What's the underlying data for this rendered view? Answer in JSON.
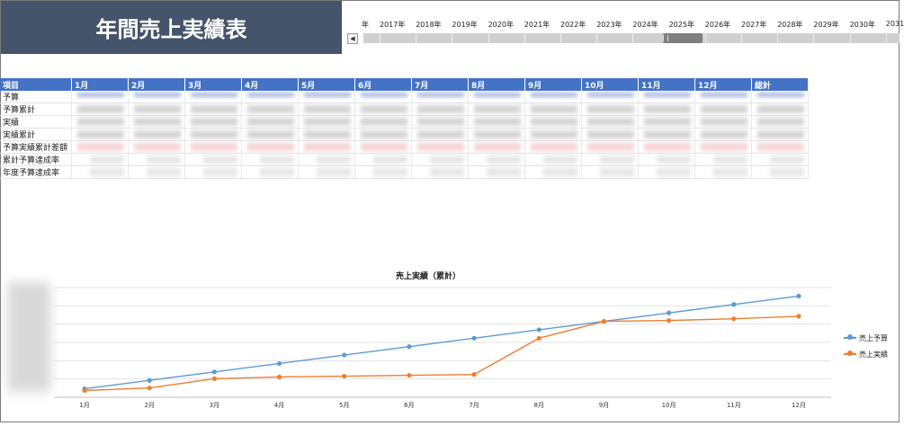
{
  "header": {
    "title": "年間売上実績表"
  },
  "timeline": {
    "unit_label": "年",
    "years": [
      "2017年",
      "2018年",
      "2019年",
      "2020年",
      "2021年",
      "2022年",
      "2023年",
      "2024年",
      "2025年",
      "2026年",
      "2027年",
      "2028年",
      "2029年",
      "2030年",
      "2031"
    ],
    "selected_year": "2025年",
    "scroll_left_icon": "chevron-left-icon"
  },
  "table": {
    "headers": [
      "項目",
      "1月",
      "2月",
      "3月",
      "4月",
      "5月",
      "6月",
      "7月",
      "8月",
      "9月",
      "10月",
      "11月",
      "12月",
      "総計"
    ],
    "rows": [
      "予算",
      "予算累計",
      "実績",
      "実績累計",
      "予算実績累計差額",
      "累計予算達成率",
      "年度予算達成率"
    ]
  },
  "chart_data": {
    "type": "line",
    "title": "売上実績（累計）",
    "categories": [
      "1月",
      "2月",
      "3月",
      "4月",
      "5月",
      "6月",
      "7月",
      "8月",
      "9月",
      "10月",
      "11月",
      "12月"
    ],
    "series": [
      {
        "name": "売上予算",
        "color": "#5b9bd5",
        "values": [
          1.0,
          2.0,
          3.0,
          4.0,
          5.0,
          6.0,
          7.0,
          8.0,
          9.0,
          10.0,
          11.0,
          12.0
        ]
      },
      {
        "name": "売上実績",
        "color": "#ed7d31",
        "values": [
          0.8,
          1.1,
          2.2,
          2.4,
          2.5,
          2.6,
          2.7,
          7.0,
          9.0,
          9.1,
          9.3,
          9.6
        ]
      }
    ],
    "ylim": [
      0,
      13
    ],
    "grid": true,
    "legend_position": "right"
  }
}
